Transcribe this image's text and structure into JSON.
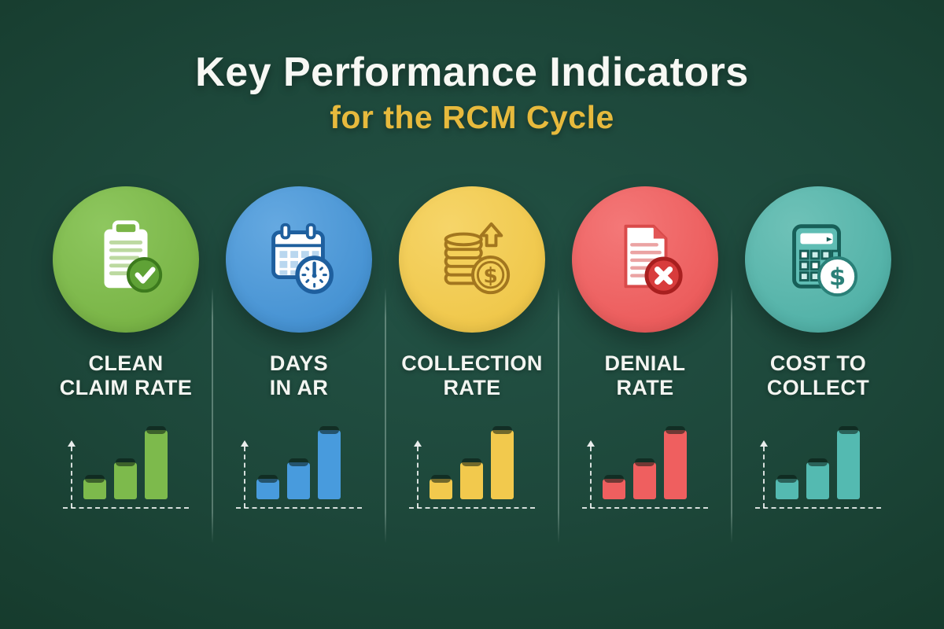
{
  "page": {
    "title": "Key Performance Indicators",
    "subtitle": "for the RCM Cycle"
  },
  "colors": {
    "background_center": "#235245",
    "background_edge": "#133627",
    "title_text": "#f7f8f4",
    "subtitle_text": "#e7ba3d",
    "label_text": "#f3f5f1",
    "divider": "rgba(225,245,235,0.32)",
    "chart_axis": "rgba(255,255,255,0.82)"
  },
  "kpis": [
    {
      "id": "clean-claim-rate",
      "label_line1": "CLEAN",
      "label_line2": "CLAIM RATE",
      "icon": "clipboard-check-icon",
      "circle_color": "#7ab547"
    },
    {
      "id": "days-in-ar",
      "label_line1": "DAYS",
      "label_line2": "IN AR",
      "icon": "calendar-clock-icon",
      "circle_color": "#4793d3"
    },
    {
      "id": "collection-rate",
      "label_line1": "COLLECTION",
      "label_line2": "RATE",
      "icon": "coins-growth-icon",
      "circle_color": "#f0c84c"
    },
    {
      "id": "denial-rate",
      "label_line1": "DENIAL",
      "label_line2": "RATE",
      "icon": "document-x-icon",
      "circle_color": "#ec5d5d"
    },
    {
      "id": "cost-to-collect",
      "label_line1": "COST TO",
      "label_line2": "COLLECT",
      "icon": "calculator-dollar-icon",
      "circle_color": "#53b2a8"
    }
  ],
  "chart_data": [
    {
      "type": "bar",
      "title": "Clean Claim Rate mini chart",
      "categories": [
        "",
        "",
        ""
      ],
      "values": [
        29,
        53,
        100
      ],
      "ylim": [
        0,
        100
      ],
      "color": "#7dba4c",
      "grid": false,
      "axis_labels": false
    },
    {
      "type": "bar",
      "title": "Days in AR mini chart",
      "categories": [
        "",
        "",
        ""
      ],
      "values": [
        29,
        53,
        100
      ],
      "ylim": [
        0,
        100
      ],
      "color": "#489bdd",
      "grid": false,
      "axis_labels": false
    },
    {
      "type": "bar",
      "title": "Collection Rate mini chart",
      "categories": [
        "",
        "",
        ""
      ],
      "values": [
        29,
        53,
        100
      ],
      "ylim": [
        0,
        100
      ],
      "color": "#f2c94d",
      "grid": false,
      "axis_labels": false
    },
    {
      "type": "bar",
      "title": "Denial Rate mini chart",
      "categories": [
        "",
        "",
        ""
      ],
      "values": [
        29,
        53,
        100
      ],
      "ylim": [
        0,
        100
      ],
      "color": "#ef5f5f",
      "grid": false,
      "axis_labels": false
    },
    {
      "type": "bar",
      "title": "Cost to Collect mini chart",
      "categories": [
        "",
        "",
        ""
      ],
      "values": [
        29,
        53,
        100
      ],
      "ylim": [
        0,
        100
      ],
      "color": "#54bab1",
      "grid": false,
      "axis_labels": false
    }
  ]
}
